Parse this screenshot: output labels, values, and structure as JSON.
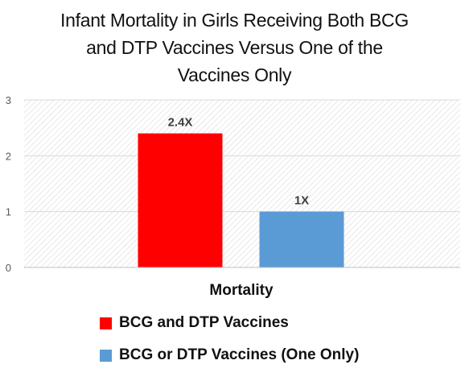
{
  "chart_data": {
    "type": "bar",
    "title_lines": [
      "Infant Mortality in Girls Receiving Both BCG",
      "and DTP Vaccines Versus One of the",
      "Vaccines Only"
    ],
    "xlabel": "Mortality",
    "ylabel": "",
    "ylim": [
      0,
      3
    ],
    "yticks": [
      "0",
      "1",
      "2",
      "3"
    ],
    "categories": [
      "Mortality"
    ],
    "series": [
      {
        "name": "BCG and DTP Vaccines",
        "values": [
          2.4
        ],
        "data_label": "2.4X",
        "color": "#ff0000"
      },
      {
        "name": "BCG or DTP Vaccines (One Only)",
        "values": [
          1
        ],
        "data_label": "1X",
        "color": "#5b9bd5"
      }
    ],
    "grid": true,
    "legend_position": "bottom"
  }
}
